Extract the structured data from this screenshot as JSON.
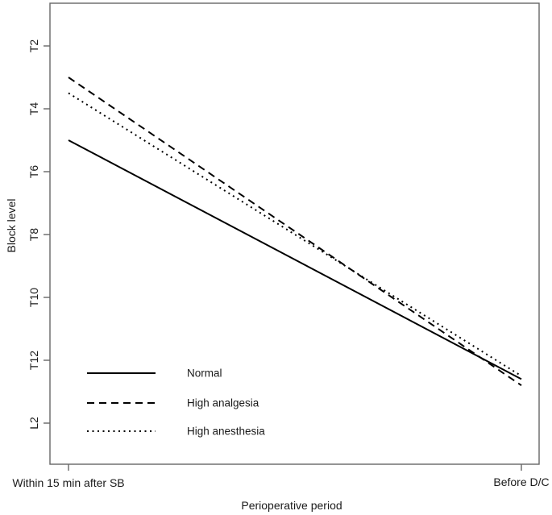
{
  "figure": {
    "background": "#ffffff",
    "box_color": "#666666",
    "series_color": "#000000",
    "text_color": "#1a1a1a"
  },
  "chart_data": {
    "type": "line",
    "title": "",
    "xlabel": "Perioperative period",
    "ylabel": "Block level",
    "x_categories": [
      "Within 15 min after SB",
      "Before D/C"
    ],
    "y_ticks": [
      {
        "label": "T2",
        "value": 2
      },
      {
        "label": "T4",
        "value": 4
      },
      {
        "label": "T6",
        "value": 6
      },
      {
        "label": "T8",
        "value": 8
      },
      {
        "label": "T10",
        "value": 10
      },
      {
        "label": "T12",
        "value": 12
      },
      {
        "label": "L2",
        "value": 14
      }
    ],
    "y_axis_reversed": true,
    "y_range_levels": [
      0.6,
      15.3
    ],
    "grid": false,
    "legend_position": "bottom-left",
    "series": [
      {
        "name": "Normal",
        "style": "solid",
        "values": [
          5.0,
          12.6
        ]
      },
      {
        "name": "High analgesia",
        "style": "dashed",
        "values": [
          3.0,
          12.8
        ]
      },
      {
        "name": "High anesthesia",
        "style": "dotted",
        "values": [
          3.5,
          12.5
        ]
      }
    ]
  }
}
